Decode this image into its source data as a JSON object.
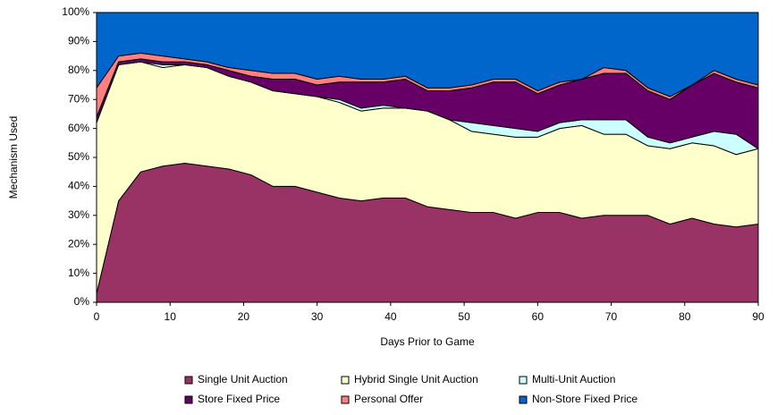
{
  "chart_data": {
    "type": "stacked_area",
    "y_label": "Mechanism Used",
    "x_label": "Days Prior to Game",
    "x": [
      0,
      3,
      6,
      9,
      12,
      15,
      18,
      21,
      24,
      27,
      30,
      33,
      36,
      39,
      42,
      45,
      48,
      51,
      54,
      57,
      60,
      63,
      66,
      69,
      72,
      75,
      78,
      81,
      84,
      87,
      90
    ],
    "series": [
      {
        "name": "Single Unit Auction",
        "color": "#993366",
        "values": [
          3,
          35,
          45,
          47,
          48,
          47,
          46,
          44,
          40,
          40,
          38,
          36,
          35,
          36,
          36,
          33,
          32,
          31,
          31,
          29,
          31,
          31,
          29,
          30,
          30,
          30,
          27,
          29,
          27,
          26,
          27
        ]
      },
      {
        "name": "Hybrid Single Unit Auction",
        "color": "#ffffcc",
        "values": [
          59,
          47,
          38,
          34,
          34,
          34,
          32,
          32,
          33,
          32,
          33,
          33,
          31,
          31,
          31,
          33,
          31,
          28,
          27,
          28,
          26,
          29,
          32,
          28,
          28,
          24,
          26,
          26,
          27,
          25,
          26
        ]
      },
      {
        "name": "Multi-Unit Auction",
        "color": "#ccffff",
        "values": [
          0,
          0,
          0,
          1,
          0,
          0,
          0,
          0,
          0,
          0,
          0,
          1,
          1,
          1,
          0,
          0,
          0,
          3,
          3,
          3,
          2,
          2,
          2,
          5,
          5,
          3,
          2,
          2,
          5,
          7,
          0
        ]
      },
      {
        "name": "Store Fixed Price",
        "color": "#660066",
        "values": [
          2,
          1,
          1,
          1,
          1,
          1,
          2,
          2,
          4,
          5,
          4,
          6,
          9,
          8,
          10,
          7,
          10,
          12,
          15,
          16,
          13,
          13,
          14,
          16,
          16,
          16,
          15,
          18,
          20,
          18,
          21
        ]
      },
      {
        "name": "Personal Offer",
        "color": "#ff8080",
        "values": [
          10,
          2,
          2,
          2,
          1,
          1,
          1,
          2,
          2,
          2,
          2,
          2,
          1,
          1,
          1,
          1,
          1,
          1,
          1,
          1,
          1,
          1,
          0,
          2,
          1,
          1,
          1,
          0,
          1,
          1,
          1
        ]
      },
      {
        "name": "Non-Store Fixed Price",
        "color": "#0066cc",
        "values": [
          26,
          15,
          14,
          15,
          16,
          17,
          19,
          20,
          21,
          21,
          23,
          22,
          23,
          23,
          22,
          26,
          26,
          25,
          23,
          23,
          27,
          24,
          23,
          19,
          20,
          26,
          29,
          25,
          20,
          23,
          25
        ]
      }
    ],
    "xlim": [
      0,
      90
    ],
    "xticks": [
      0,
      10,
      20,
      30,
      40,
      50,
      60,
      70,
      80,
      90
    ],
    "ylim": [
      0,
      100
    ],
    "yticks": [
      {
        "value": 0,
        "label": "0%"
      },
      {
        "value": 10,
        "label": "10%"
      },
      {
        "value": 20,
        "label": "20%"
      },
      {
        "value": 30,
        "label": "30%"
      },
      {
        "value": 40,
        "label": "40%"
      },
      {
        "value": 50,
        "label": "50%"
      },
      {
        "value": 60,
        "label": "60%"
      },
      {
        "value": 70,
        "label": "70%"
      },
      {
        "value": 80,
        "label": "80%"
      },
      {
        "value": 90,
        "label": "90%"
      },
      {
        "value": 100,
        "label": "100%"
      }
    ],
    "grid": false
  }
}
